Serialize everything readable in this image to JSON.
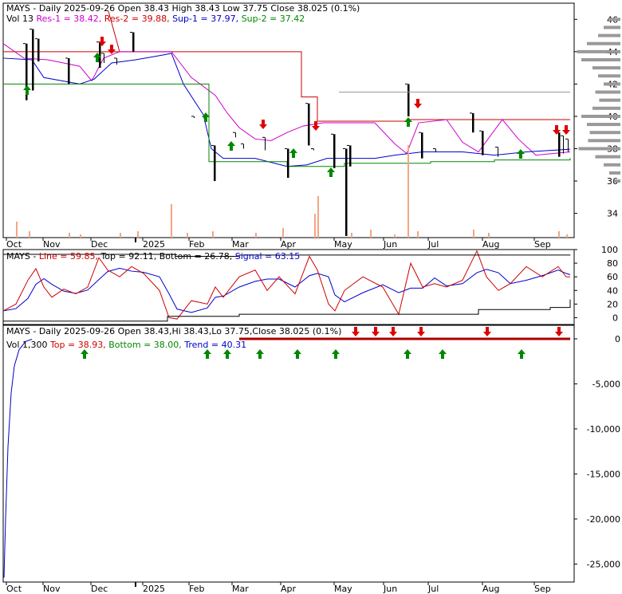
{
  "panels": {
    "price": {
      "header_line1": "MAYS - Daily 2025-09-26 Open 38.43  High 38.43  Low 37.75  Close 38.025 (0.1%)",
      "header_line2": [
        {
          "text": "Vol 13 ",
          "color": "#000000"
        },
        {
          "text": "Res-1 = 38.42, ",
          "color": "#cc00cc"
        },
        {
          "text": "Res-2 = 39.88, ",
          "color": "#cc0000"
        },
        {
          "text": "Sup-1 = 37.97, ",
          "color": "#0000cc"
        },
        {
          "text": "Sup-2 = 37.42",
          "color": "#008800"
        }
      ],
      "y_ticks": [
        "46",
        "44",
        "42",
        "40",
        "38",
        "36",
        "34"
      ]
    },
    "oscillator": {
      "header": [
        {
          "text": "MAYS - ",
          "color": "#000000"
        },
        {
          "text": "Line = 59.85, ",
          "color": "#cc0000"
        },
        {
          "text": "Top = 92.11, ",
          "color": "#000000"
        },
        {
          "text": "Bottom = 26.78, ",
          "color": "#000000"
        },
        {
          "text": "Signal = 63.15",
          "color": "#0000cc"
        }
      ],
      "y_ticks": [
        "100",
        "80",
        "60",
        "40",
        "20",
        "0"
      ]
    },
    "trend": {
      "header_line1": "MAYS - Daily 2025-09-26 Open 38.43,Hi 38.43,Lo 37.75,Close 38.025 (0.1%)",
      "header_line2": [
        {
          "text": "Vol 1,300 ",
          "color": "#000000"
        },
        {
          "text": "Top = 38.93, ",
          "color": "#cc0000"
        },
        {
          "text": "Bottom = 38.00, ",
          "color": "#008800"
        },
        {
          "text": "Trend = 40.31",
          "color": "#0000cc"
        }
      ],
      "y_ticks": [
        "0",
        "-5,000",
        "-10,000",
        "-15,000",
        "-20,000",
        "-25,000"
      ]
    },
    "x_labels": [
      "Oct",
      "Nov",
      "Dec",
      "2025",
      "Feb",
      "Mar",
      "Apr",
      "May",
      "Jun",
      "Jul",
      "Aug",
      "Sep"
    ]
  },
  "colors": {
    "up_arrow": "#008800",
    "down_arrow": "#dd0000",
    "res1": "#cc00cc",
    "res2": "#cc0000",
    "sup1": "#0000cc",
    "sup2": "#008800",
    "volume": "#f4a582"
  },
  "chart_data": [
    {
      "type": "line",
      "title": "MAYS - Daily 2025-09-26",
      "x": [
        "Oct",
        "Nov",
        "Dec",
        "2025",
        "Feb",
        "Mar",
        "Apr",
        "May",
        "Jun",
        "Jul",
        "Aug",
        "Sep"
      ],
      "ylim": [
        32.5,
        47
      ],
      "series": [
        {
          "name": "Res-2",
          "values": [
            44.0,
            44.0,
            44.0,
            44.0,
            44.0,
            44.0,
            44.0,
            39.8,
            39.6,
            39.8,
            39.8,
            39.88
          ]
        },
        {
          "name": "Res-1",
          "values": [
            43.5,
            43.0,
            42.5,
            44.0,
            42.0,
            38.8,
            38.4,
            39.6,
            38.0,
            39.8,
            38.6,
            38.42
          ]
        },
        {
          "name": "Sup-1",
          "values": [
            43.5,
            42.0,
            42.5,
            43.5,
            37.6,
            37.4,
            37.0,
            37.2,
            37.4,
            37.8,
            37.6,
            37.97
          ]
        },
        {
          "name": "Sup-2",
          "values": [
            42.0,
            42.0,
            42.0,
            42.0,
            37.2,
            37.2,
            37.0,
            36.8,
            37.2,
            37.2,
            37.4,
            37.42
          ]
        }
      ],
      "grid": false
    },
    {
      "type": "line",
      "title": "MAYS",
      "x": [
        "Oct",
        "Nov",
        "Dec",
        "2025",
        "Feb",
        "Mar",
        "Apr",
        "May",
        "Jun",
        "Jul",
        "Aug",
        "Sep"
      ],
      "ylim": [
        -10,
        100
      ],
      "series": [
        {
          "name": "Line",
          "values": [
            10,
            60,
            40,
            80,
            5,
            50,
            75,
            20,
            80,
            30,
            95,
            59.85
          ]
        },
        {
          "name": "Signal",
          "values": [
            15,
            50,
            45,
            70,
            10,
            45,
            70,
            25,
            70,
            40,
            85,
            63.15
          ]
        },
        {
          "name": "Top",
          "values": [
            92,
            92,
            92,
            92,
            90,
            92,
            92,
            92,
            92,
            92,
            92,
            92.11
          ]
        },
        {
          "name": "Bottom",
          "values": [
            -5,
            -5,
            0,
            5,
            5,
            5,
            5,
            5,
            5,
            10,
            15,
            26.78
          ]
        }
      ]
    },
    {
      "type": "line",
      "title": "MAYS - Daily 2025-09-26",
      "x": [
        "Oct",
        "Nov",
        "Dec",
        "2025",
        "Feb",
        "Mar",
        "Apr",
        "May",
        "Jun",
        "Jul",
        "Aug",
        "Sep"
      ],
      "ylim": [
        -27000,
        1500
      ],
      "series": [
        {
          "name": "Vol",
          "values": [
            -26500,
            -1500,
            -300,
            -100,
            0,
            0,
            0,
            0,
            0,
            0,
            0,
            0
          ]
        }
      ]
    }
  ]
}
